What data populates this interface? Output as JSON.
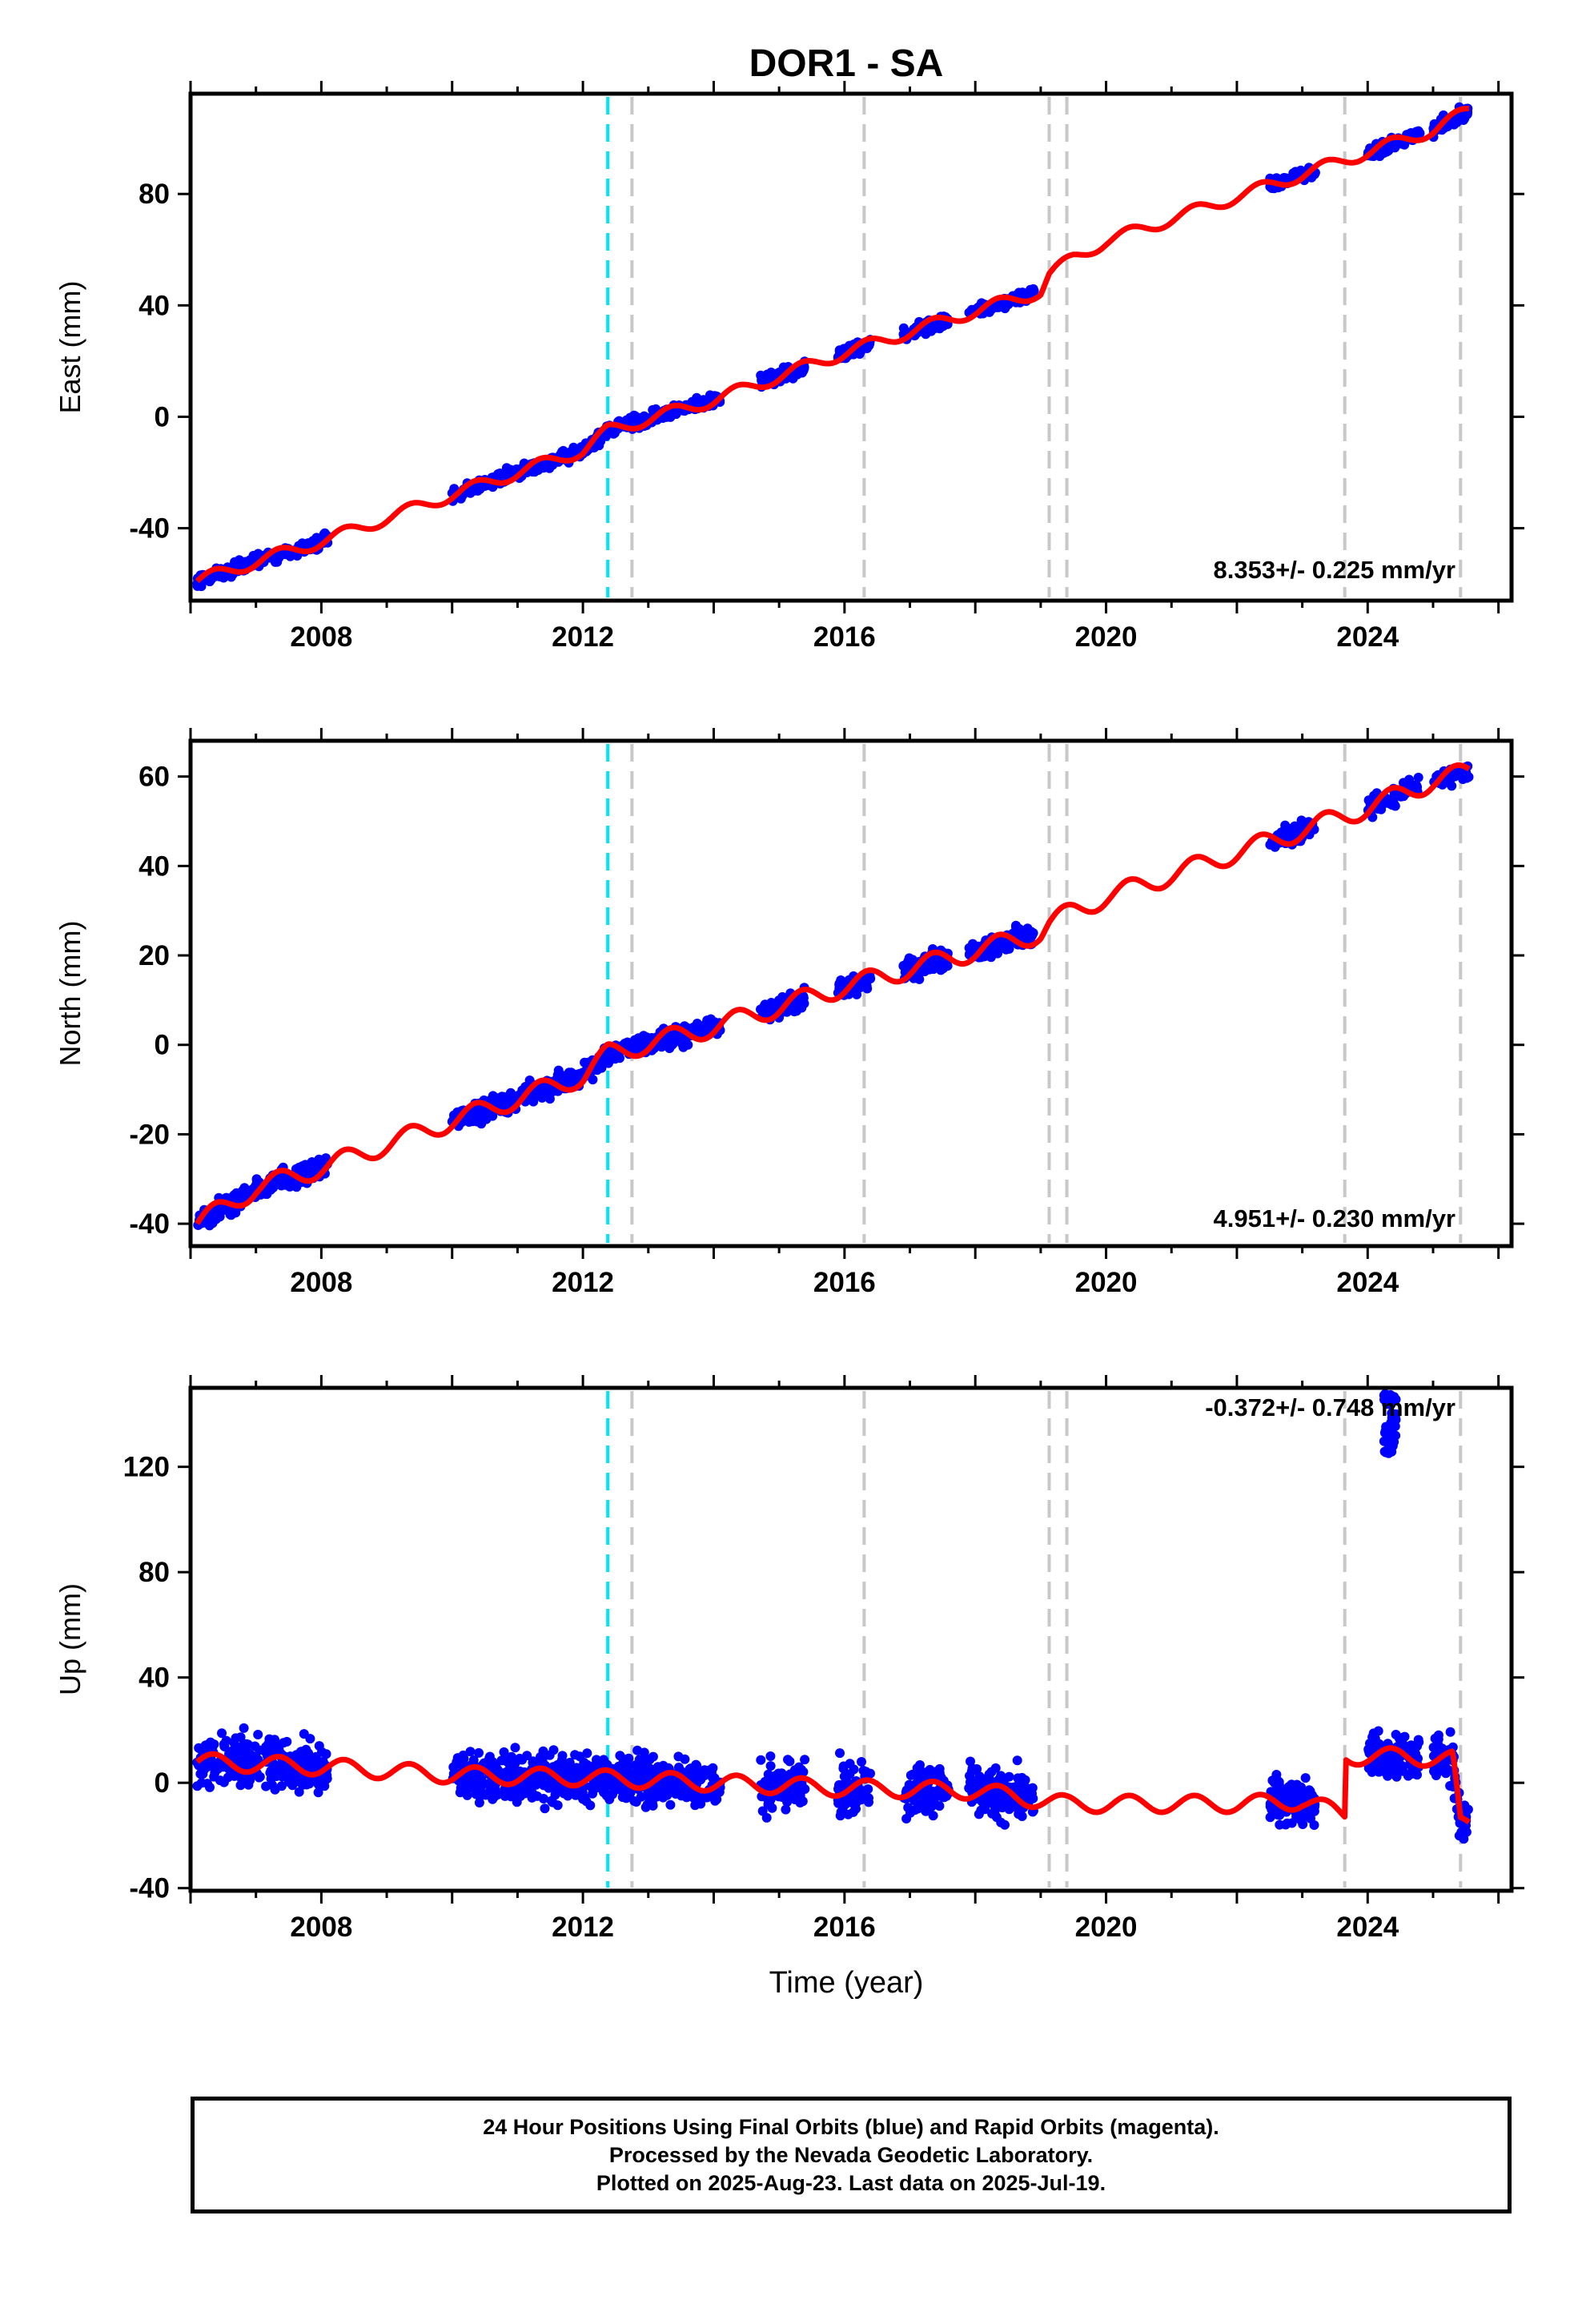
{
  "title": "DOR1 - SA",
  "xlabel": "Time (year)",
  "x_ticks": [
    "2008",
    "2012",
    "2016",
    "2020",
    "2024"
  ],
  "colors": {
    "points": "#0000ff",
    "model": "#ff0000",
    "equipment_line": "#00e5ff",
    "event_line": "#c8c8c8"
  },
  "event_lines": {
    "cyan": [
      2012.38
    ],
    "gray": [
      2012.75,
      2016.3,
      2019.13,
      2019.4,
      2023.65,
      2025.42
    ]
  },
  "caption": {
    "line1": "24 Hour Positions Using Final Orbits (blue) and Rapid Orbits (magenta).",
    "line2": "Processed by the Nevada Geodetic Laboratory.",
    "line3": "Plotted on 2025-Aug-23. Last data on 2025-Jul-19."
  },
  "chart_data": [
    {
      "type": "scatter",
      "ylabel": "East (mm)",
      "xlim": [
        2006.0,
        2026.2
      ],
      "ylim": [
        -66,
        116
      ],
      "y_ticks": [
        "-40",
        "0",
        "40",
        "80"
      ],
      "rate_label": "8.353+/- 0.225 mm/yr",
      "data_segments": [
        [
          2006.1,
          2008.1
        ],
        [
          2010.0,
          2012.38
        ],
        [
          2012.38,
          2014.1
        ],
        [
          2014.7,
          2015.4
        ],
        [
          2015.9,
          2016.4
        ],
        [
          2016.9,
          2017.6
        ],
        [
          2017.9,
          2018.9
        ],
        [
          2022.5,
          2023.2
        ],
        [
          2024.0,
          2024.8
        ],
        [
          2025.0,
          2025.55
        ]
      ],
      "model": {
        "x": [
          2006.1,
          2007.0,
          2008.1,
          2010.0,
          2012.0,
          2012.38,
          2014.0,
          2016.0,
          2018.0,
          2019.0,
          2019.13,
          2019.5,
          2020.0,
          2022.0,
          2023.0,
          2024.0,
          2025.0,
          2025.55
        ],
        "y": [
          -59,
          -52,
          -44,
          -28,
          -12,
          -5,
          6,
          23,
          38,
          45,
          51,
          57,
          63,
          79,
          87,
          95,
          103,
          110
        ]
      }
    },
    {
      "type": "scatter",
      "ylabel": "North (mm)",
      "xlim": [
        2006.0,
        2026.2
      ],
      "ylim": [
        -45,
        68
      ],
      "y_ticks": [
        "-40",
        "-20",
        "0",
        "20",
        "40",
        "60"
      ],
      "rate_label": "4.951+/- 0.230 mm/yr",
      "data_segments": [
        [
          2006.1,
          2008.1
        ],
        [
          2010.0,
          2012.38
        ],
        [
          2012.38,
          2014.1
        ],
        [
          2014.7,
          2015.4
        ],
        [
          2015.9,
          2016.4
        ],
        [
          2016.9,
          2017.6
        ],
        [
          2017.9,
          2018.9
        ],
        [
          2022.5,
          2023.2
        ],
        [
          2024.0,
          2024.8
        ],
        [
          2025.0,
          2025.55
        ]
      ],
      "model": {
        "x": [
          2006.1,
          2007.0,
          2008.1,
          2010.0,
          2012.0,
          2012.38,
          2014.0,
          2016.0,
          2018.0,
          2019.0,
          2019.13,
          2019.5,
          2020.0,
          2022.0,
          2023.0,
          2024.0,
          2025.0,
          2025.55
        ],
        "y": [
          -40,
          -32,
          -27,
          -17,
          -7,
          -2,
          4,
          13,
          21,
          25,
          27,
          30,
          33,
          43,
          48,
          53,
          59,
          61
        ]
      }
    },
    {
      "type": "scatter",
      "ylabel": "Up (mm)",
      "xlim": [
        2006.0,
        2026.2
      ],
      "ylim": [
        -41,
        150
      ],
      "y_ticks": [
        "-40",
        "0",
        "40",
        "80",
        "120"
      ],
      "rate_label": "-0.372+/- 0.748 mm/yr",
      "data_segments": [
        [
          2006.1,
          2008.1
        ],
        [
          2010.0,
          2012.38
        ],
        [
          2012.38,
          2014.1
        ],
        [
          2014.7,
          2015.4
        ],
        [
          2015.9,
          2016.4
        ],
        [
          2016.9,
          2017.6
        ],
        [
          2017.9,
          2018.9
        ],
        [
          2022.5,
          2023.2
        ],
        [
          2024.0,
          2024.8
        ],
        [
          2025.0,
          2025.55
        ]
      ],
      "outlier_cluster": {
        "x": [
          2024.25,
          2024.45
        ],
        "y": [
          125,
          148
        ]
      },
      "model": {
        "x": [
          2006.1,
          2008.1,
          2010.0,
          2012.0,
          2014.0,
          2016.0,
          2018.0,
          2019.4,
          2022.0,
          2023.0,
          2023.65,
          2023.66,
          2024.5,
          2025.3,
          2025.42,
          2025.55
        ],
        "y": [
          8,
          6,
          3,
          2,
          0,
          -2,
          -3,
          -8,
          -8,
          -7,
          -12,
          10,
          10,
          9,
          -16,
          -16
        ]
      }
    }
  ]
}
